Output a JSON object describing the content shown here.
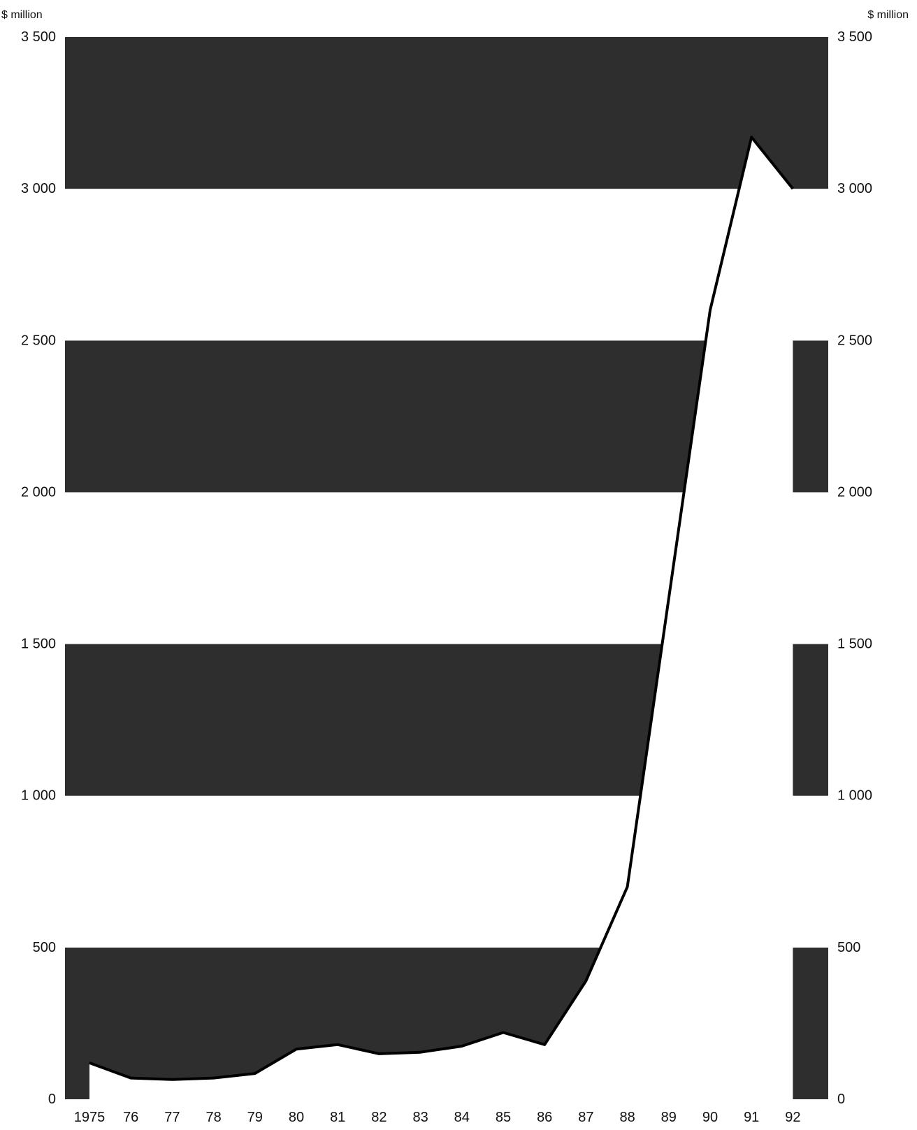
{
  "chart_data": {
    "type": "area",
    "unit_left": "$ million",
    "unit_right": "$ million",
    "x": [
      "1975",
      "76",
      "77",
      "78",
      "79",
      "80",
      "81",
      "82",
      "83",
      "84",
      "85",
      "86",
      "87",
      "88",
      "89",
      "90",
      "91",
      "92"
    ],
    "values": [
      120,
      70,
      65,
      70,
      85,
      165,
      180,
      150,
      155,
      175,
      220,
      180,
      390,
      700,
      1650,
      2600,
      3170,
      3000
    ],
    "ylim": [
      0,
      3500
    ],
    "yticks": [
      0,
      500,
      1000,
      1500,
      2000,
      2500,
      3000,
      3500
    ],
    "ytick_labels": [
      "0",
      "500",
      "1 000",
      "1 500",
      "2 000",
      "2 500",
      "3 000",
      "3 500"
    ],
    "band_colors": [
      "#2e2e2e",
      "#ffffff"
    ],
    "area_color": "#ffffff",
    "line_color": "#000000",
    "grid": false,
    "legend": "none"
  }
}
